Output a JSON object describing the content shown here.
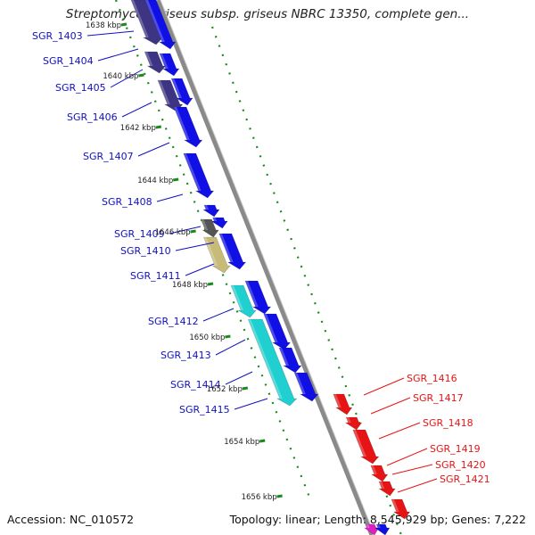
{
  "title": "Streptomyces griseus subsp. griseus NBRC 13350, complete gen...",
  "footer": {
    "accession": "Accession: NC_010572",
    "topology": "Topology: linear; Length: 8,545,929 bp; Genes: 7,222"
  },
  "colors": {
    "forward_gene": "#1010e6",
    "reverse_gene": "#e61414",
    "backbone": "#8a8a8a",
    "dots": "#1a8a1a",
    "left_label": "#1010c0",
    "right_label": "#e61414",
    "gene_purple": "#3d3584",
    "gene_cyan": "#20d0d0",
    "gene_gray": "#555555",
    "gene_khaki": "#c8bb78"
  },
  "kbp_ticks": [
    "1638 kbp",
    "1640 kbp",
    "1642 kbp",
    "1644 kbp",
    "1646 kbp",
    "1648 kbp",
    "1650 kbp",
    "1652 kbp",
    "1654 kbp",
    "1656 kbp"
  ],
  "left_genes": [
    "SGR_1403",
    "SGR_1404",
    "SGR_1405",
    "SGR_1406",
    "SGR_1407",
    "SGR_1408",
    "SGR_1409",
    "SGR_1410",
    "SGR_1411",
    "SGR_1412",
    "SGR_1413",
    "SGR_1414",
    "SGR_1415"
  ],
  "right_genes": [
    "SGR_1416",
    "SGR_1417",
    "SGR_1418",
    "SGR_1419",
    "SGR_1420",
    "SGR_1421"
  ]
}
